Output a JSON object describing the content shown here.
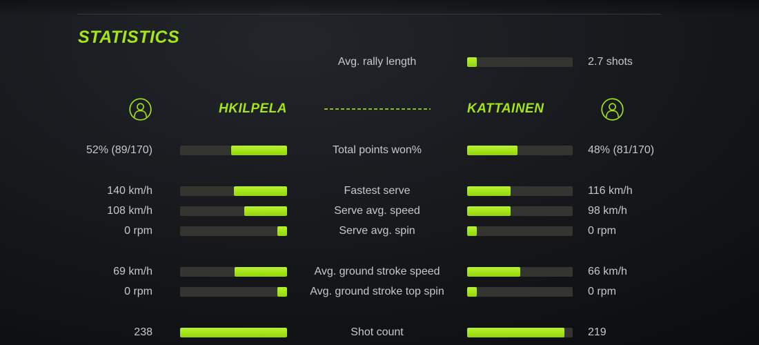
{
  "colors": {
    "accent": "#a4e518",
    "track": "#343431",
    "text": "#c6c9cc"
  },
  "title": "STATISTICS",
  "rally": {
    "label": "Avg. rally length",
    "value": "2.7 shots",
    "fill_pct": 9
  },
  "players": {
    "left": {
      "name": "HKILPELA",
      "avatar_icon": "person-icon"
    },
    "right": {
      "name": "KATTAINEN",
      "avatar_icon": "person-icon"
    }
  },
  "stats": [
    {
      "label": "Total points won%",
      "left_value": "52% (89/170)",
      "right_value": "48% (81/170)",
      "left_fill_pct": 52,
      "right_fill_pct": 48
    },
    {
      "label": "Fastest serve",
      "left_value": "140 km/h",
      "right_value": "116 km/h",
      "left_fill_pct": 50,
      "right_fill_pct": 41
    },
    {
      "label": "Serve avg. speed",
      "left_value": "108 km/h",
      "right_value": "98 km/h",
      "left_fill_pct": 40,
      "right_fill_pct": 41
    },
    {
      "label": "Serve avg. spin",
      "left_value": "0 rpm",
      "right_value": "0 rpm",
      "left_fill_pct": 9,
      "right_fill_pct": 9
    },
    {
      "label": "Avg. ground stroke speed",
      "left_value": "69 km/h",
      "right_value": "66 km/h",
      "left_fill_pct": 49,
      "right_fill_pct": 50
    },
    {
      "label": "Avg. ground stroke top spin",
      "left_value": "0 rpm",
      "right_value": "0 rpm",
      "left_fill_pct": 9,
      "right_fill_pct": 9
    },
    {
      "label": "Shot count",
      "left_value": "238",
      "right_value": "219",
      "left_fill_pct": 100,
      "right_fill_pct": 92
    }
  ]
}
